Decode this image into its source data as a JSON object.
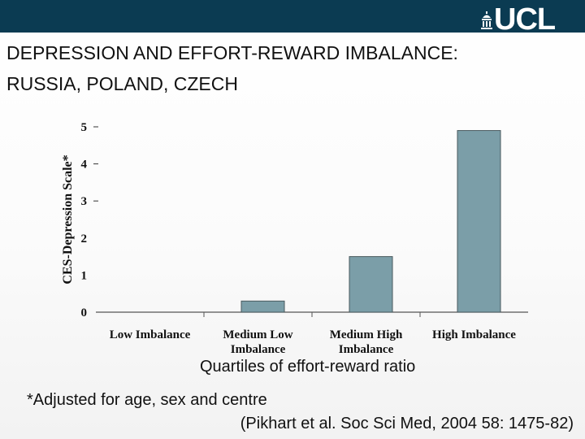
{
  "header": {
    "logo_text": "UCL",
    "title_line1": "DEPRESSION AND EFFORT-REWARD IMBALANCE:",
    "title_line2": "RUSSIA, POLAND, CZECH",
    "bar_color": "#0b3b52"
  },
  "chart_data": {
    "type": "bar",
    "title": "DEPRESSION AND EFFORT-REWARD IMBALANCE: RUSSIA, POLAND, CZECH",
    "ylabel": "CES-Depression Scale*",
    "xlabel": "Quartiles of effort-reward ratio",
    "categories": [
      [
        "Low Imbalance"
      ],
      [
        "Medium Low",
        "Imbalance"
      ],
      [
        "Medium High",
        "Imbalance"
      ],
      [
        "High Imbalance"
      ]
    ],
    "values": [
      0,
      0.3,
      1.5,
      4.9
    ],
    "ylim": [
      0,
      5
    ],
    "yticks": [
      "0",
      "1",
      "2",
      "3",
      "4",
      "5"
    ],
    "bar_color": "#7b9ea8",
    "grid": false,
    "legend": "none"
  },
  "footer": {
    "note": "*Adjusted for age, sex and centre",
    "citation": "(Pikhart et al. Soc Sci Med, 2004 58: 1475-82)"
  }
}
